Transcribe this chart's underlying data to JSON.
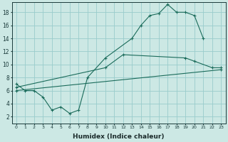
{
  "xlabel": "Humidex (Indice chaleur)",
  "bg_color": "#cce8e4",
  "grid_color": "#99cccc",
  "line_color": "#1a6b5a",
  "xlim": [
    -0.5,
    23.5
  ],
  "ylim": [
    1.0,
    19.5
  ],
  "yticks": [
    2,
    4,
    6,
    8,
    10,
    12,
    14,
    16,
    18
  ],
  "xticks": [
    0,
    1,
    2,
    3,
    4,
    5,
    6,
    7,
    8,
    9,
    10,
    11,
    12,
    13,
    14,
    15,
    16,
    17,
    18,
    19,
    20,
    21,
    22,
    23
  ],
  "line1_x": [
    0,
    1,
    2,
    3,
    4,
    5,
    6,
    7,
    8,
    10,
    13,
    14,
    15,
    16,
    17,
    18,
    19,
    20,
    21
  ],
  "line1_y": [
    7.0,
    6.0,
    6.0,
    5.0,
    3.0,
    3.5,
    2.5,
    3.0,
    8.0,
    11.0,
    14.0,
    16.0,
    17.5,
    17.8,
    19.2,
    18.0,
    18.0,
    17.5,
    14.0
  ],
  "line2_x": [
    0,
    10,
    12,
    19,
    20,
    22,
    23
  ],
  "line2_y": [
    6.5,
    9.5,
    11.5,
    11.0,
    10.5,
    9.5,
    9.5
  ],
  "line3_x": [
    0,
    23
  ],
  "line3_y": [
    6.0,
    9.2
  ]
}
